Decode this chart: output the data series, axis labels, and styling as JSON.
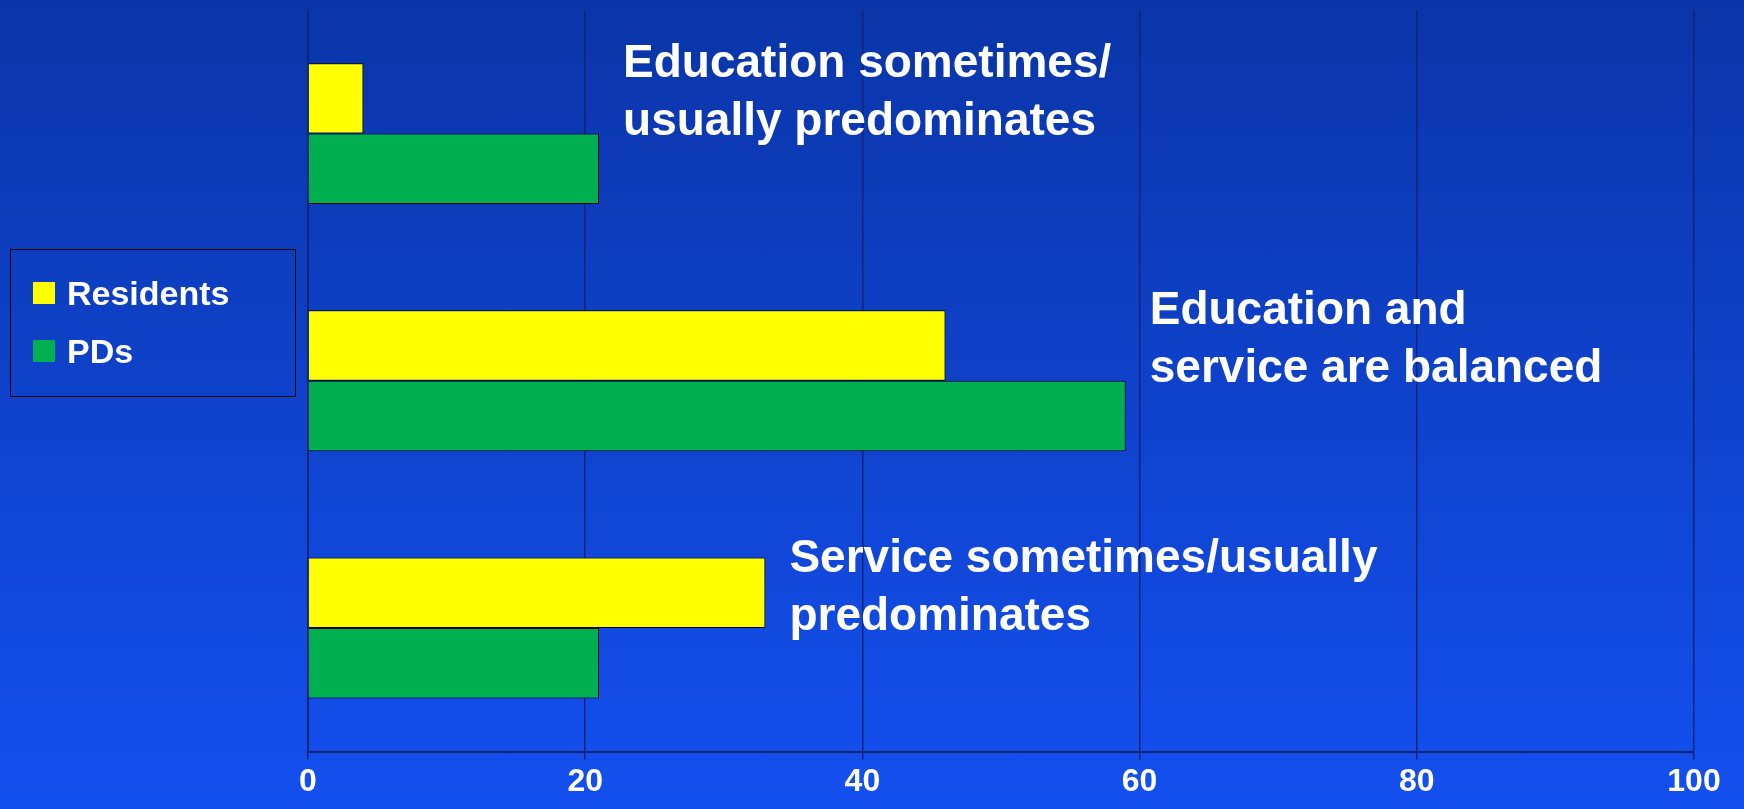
{
  "chart_data": {
    "type": "bar",
    "orientation": "horizontal",
    "categories": [
      "Education sometimes/\nusually predominates",
      "Education and\nservice are balanced",
      "Service sometimes/usually\npredominates"
    ],
    "series": [
      {
        "name": "Residents",
        "color": "#ffff00",
        "values": [
          4,
          46,
          33
        ]
      },
      {
        "name": "PDs",
        "color": "#00b050",
        "values": [
          21,
          59,
          21
        ]
      }
    ],
    "xlim": [
      0,
      100
    ],
    "xticks": [
      0,
      20,
      40,
      60,
      80,
      100
    ],
    "grid": "x",
    "legend": "left"
  }
}
